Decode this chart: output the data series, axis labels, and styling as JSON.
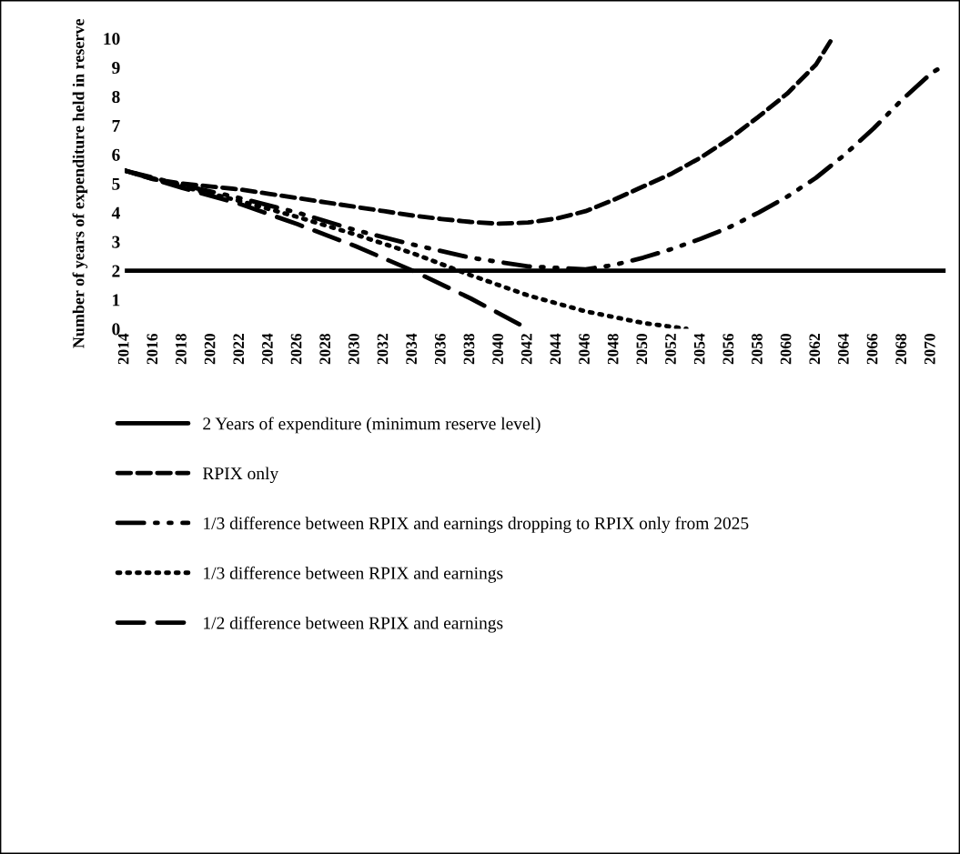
{
  "chart_data": {
    "type": "line",
    "ylabel": "Number of years of expenditure held in reserve",
    "xlim": [
      2014,
      2071
    ],
    "xticks": [
      2014,
      2016,
      2018,
      2020,
      2022,
      2024,
      2026,
      2028,
      2030,
      2032,
      2034,
      2036,
      2038,
      2040,
      2042,
      2044,
      2046,
      2048,
      2050,
      2052,
      2054,
      2056,
      2058,
      2060,
      2062,
      2064,
      2066,
      2068,
      2070
    ],
    "ylim": [
      0,
      10
    ],
    "yticks": [
      0,
      1,
      2,
      3,
      4,
      5,
      6,
      7,
      8,
      9,
      10
    ],
    "grid": false,
    "legend": "bottom",
    "series": [
      {
        "name": "2 Years of expenditure (minimum reserve level)",
        "color": "#000000",
        "line_style": "solid",
        "x": [
          2014,
          2071
        ],
        "values": [
          2,
          2
        ]
      },
      {
        "name": "RPIX only",
        "color": "#000000",
        "line_style": "dashed",
        "x": [
          2014,
          2016,
          2018,
          2020,
          2022,
          2024,
          2026,
          2028,
          2030,
          2032,
          2034,
          2036,
          2038,
          2040,
          2042,
          2044,
          2046,
          2048,
          2050,
          2052,
          2054,
          2056,
          2058,
          2060,
          2062,
          2063
        ],
        "values": [
          5.45,
          5.15,
          5.0,
          4.9,
          4.8,
          4.65,
          4.5,
          4.35,
          4.2,
          4.05,
          3.9,
          3.78,
          3.68,
          3.62,
          3.66,
          3.8,
          4.05,
          4.45,
          4.9,
          5.35,
          5.9,
          6.55,
          7.3,
          8.1,
          9.1,
          9.9
        ]
      },
      {
        "name": "1/3 difference between RPIX and earnings dropping to RPIX only from 2025",
        "color": "#000000",
        "line_style": "dashdot",
        "x": [
          2014,
          2018,
          2022,
          2026,
          2030,
          2034,
          2038,
          2042,
          2046,
          2048,
          2050,
          2052,
          2054,
          2056,
          2058,
          2060,
          2062,
          2064,
          2066,
          2068,
          2070,
          2071
        ],
        "values": [
          5.45,
          4.95,
          4.5,
          4.0,
          3.4,
          2.9,
          2.45,
          2.15,
          2.05,
          2.2,
          2.45,
          2.75,
          3.1,
          3.5,
          4.0,
          4.55,
          5.2,
          6.0,
          6.9,
          7.9,
          8.8,
          9.1
        ]
      },
      {
        "name": "1/3 difference between RPIX and earnings",
        "color": "#000000",
        "line_style": "dotted",
        "x": [
          2014,
          2018,
          2022,
          2026,
          2030,
          2034,
          2038,
          2042,
          2046,
          2050,
          2053
        ],
        "values": [
          5.45,
          4.9,
          4.4,
          3.85,
          3.25,
          2.6,
          1.85,
          1.15,
          0.6,
          0.2,
          0.0
        ]
      },
      {
        "name": "1/2 difference between RPIX and earnings",
        "color": "#000000",
        "line_style": "longdash",
        "x": [
          2014,
          2018,
          2022,
          2026,
          2030,
          2034,
          2038,
          2042
        ],
        "values": [
          5.45,
          4.85,
          4.3,
          3.6,
          2.85,
          2.0,
          1.05,
          0.0
        ]
      }
    ]
  }
}
